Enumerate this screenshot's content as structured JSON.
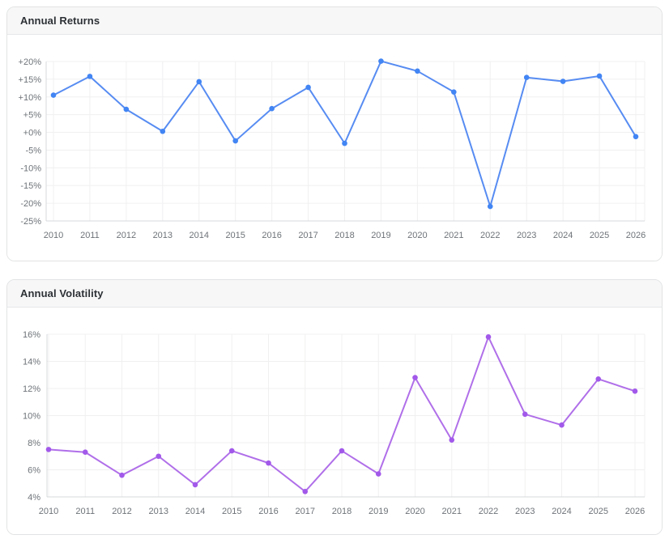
{
  "page": {
    "background": "#ffffff"
  },
  "cards": [
    {
      "title": "Annual Returns"
    },
    {
      "title": "Annual Volatility"
    }
  ],
  "chart_data": [
    {
      "type": "line",
      "title": "Annual Returns",
      "xlabel": "",
      "ylabel": "",
      "legend": "none",
      "grid": true,
      "x": [
        "2010",
        "2011",
        "2012",
        "2013",
        "2014",
        "2015",
        "2016",
        "2017",
        "2018",
        "2019",
        "2020",
        "2021",
        "2022",
        "2023",
        "2024",
        "2025",
        "2026"
      ],
      "series": [
        {
          "name": "Annual Returns (%)",
          "values": [
            10.5,
            15.8,
            6.5,
            0.3,
            14.3,
            -2.4,
            6.7,
            12.7,
            -3.1,
            20.1,
            17.3,
            11.4,
            -20.9,
            15.5,
            14.4,
            15.9,
            -1.2
          ]
        }
      ],
      "ylim": [
        -25,
        20
      ],
      "y_tick_values": [
        20,
        15,
        10,
        5,
        0,
        -5,
        -10,
        -15,
        -20,
        -25
      ],
      "y_tick_labels": [
        "+20%",
        "+15%",
        "+10%",
        "+5%",
        "+0%",
        "-5%",
        "-10%",
        "-15%",
        "-20%",
        "-25%"
      ],
      "line_color": "#578cf2",
      "point_color": "#4285f4",
      "grid_color": "#f0f0f1",
      "axis_color": "#d7d9db"
    },
    {
      "type": "line",
      "title": "Annual Volatility",
      "xlabel": "",
      "ylabel": "",
      "legend": "none",
      "grid": true,
      "x": [
        "2010",
        "2011",
        "2012",
        "2013",
        "2014",
        "2015",
        "2016",
        "2017",
        "2018",
        "2019",
        "2020",
        "2021",
        "2022",
        "2023",
        "2024",
        "2025",
        "2026"
      ],
      "series": [
        {
          "name": "Annual Volatility (%)",
          "values": [
            7.5,
            7.3,
            5.6,
            7.0,
            4.9,
            7.4,
            6.5,
            4.4,
            7.4,
            5.7,
            12.8,
            8.2,
            15.8,
            10.1,
            9.3,
            12.7,
            11.8
          ]
        }
      ],
      "ylim": [
        4,
        16
      ],
      "y_tick_values": [
        16,
        14,
        12,
        10,
        8,
        6,
        4
      ],
      "y_tick_labels": [
        "16%",
        "14%",
        "12%",
        "10%",
        "8%",
        "6%",
        "4%"
      ],
      "line_color": "#b06fe9",
      "point_color": "#a259ea",
      "grid_color": "#f0f0f1",
      "axis_color": "#d7d9db"
    }
  ]
}
